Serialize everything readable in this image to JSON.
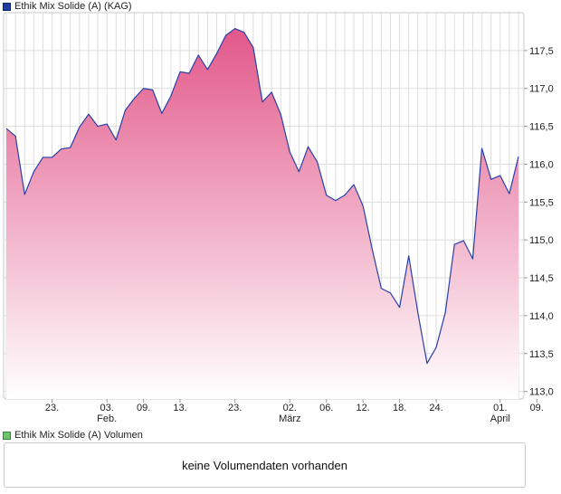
{
  "legend": {
    "price_label": "Ethik Mix Solide (A) (KAG)",
    "volume_label": "Ethik Mix Solide (A) Volumen"
  },
  "volume": {
    "message": "keine Volumendaten vorhanden"
  },
  "colors": {
    "line": "#2a3fa8",
    "fill_top": "#e2588a",
    "fill_bottom": "#ffffff",
    "grid": "#dddddd"
  },
  "chart_data": {
    "type": "area",
    "title": "",
    "xlabel": "",
    "ylabel": "",
    "ylim": [
      112.9,
      118.0
    ],
    "y_ticks": [
      "113,0",
      "113,5",
      "114,0",
      "114,5",
      "115,0",
      "115,5",
      "116,0",
      "116,5",
      "117,0",
      "117,5"
    ],
    "y_tick_values": [
      113.0,
      113.5,
      114.0,
      114.5,
      115.0,
      115.5,
      116.0,
      116.5,
      117.0,
      117.5
    ],
    "x_ticks": [
      {
        "day": "23.",
        "month": "",
        "index": 5
      },
      {
        "day": "03.",
        "month": "Feb.",
        "index": 11
      },
      {
        "day": "09.",
        "month": "",
        "index": 15
      },
      {
        "day": "13.",
        "month": "",
        "index": 19
      },
      {
        "day": "23.",
        "month": "",
        "index": 25
      },
      {
        "day": "02.",
        "month": "März",
        "index": 31
      },
      {
        "day": "06.",
        "month": "",
        "index": 35
      },
      {
        "day": "12.",
        "month": "",
        "index": 39
      },
      {
        "day": "18.",
        "month": "",
        "index": 43
      },
      {
        "day": "24.",
        "month": "",
        "index": 47
      },
      {
        "day": "01.",
        "month": "April",
        "index": 54
      },
      {
        "day": "09.",
        "month": "",
        "index": 58
      }
    ],
    "grid": true,
    "y_axis_side": "right",
    "series": [
      {
        "values": [
          116.47,
          116.37,
          115.6,
          115.9,
          116.09,
          116.09,
          116.2,
          116.22,
          116.49,
          116.66,
          116.5,
          116.53,
          116.32,
          116.71,
          116.87,
          117.0,
          116.98,
          116.67,
          116.9,
          117.22,
          117.2,
          117.44,
          117.25,
          117.46,
          117.7,
          117.79,
          117.74,
          117.54,
          116.82,
          116.95,
          116.66,
          116.16,
          115.9,
          116.23,
          116.03,
          115.59,
          115.52,
          115.59,
          115.73,
          115.45,
          114.88,
          114.36,
          114.3,
          114.11,
          114.79,
          114.04,
          113.37,
          113.58,
          114.04,
          114.94,
          114.99,
          114.75,
          116.21,
          115.8,
          115.85,
          115.61,
          116.1
        ]
      }
    ]
  }
}
